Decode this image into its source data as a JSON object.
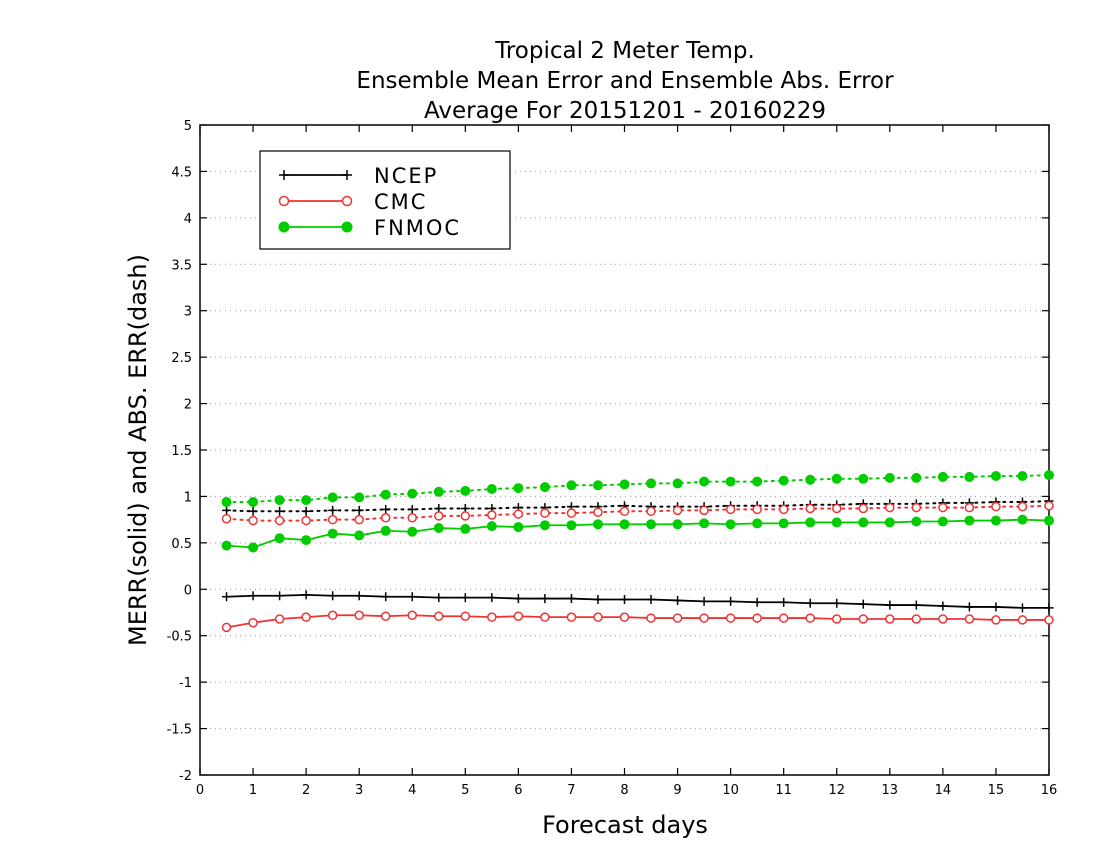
{
  "chart_data": {
    "type": "line",
    "title": [
      "Tropical 2 Meter Temp.",
      "Ensemble Mean Error and Ensemble Abs. Error",
      "Average For 20151201 - 20160229"
    ],
    "xlabel": "Forecast days",
    "ylabel": "MERR(solid) and ABS. ERR(dash)",
    "xlim": [
      0,
      16
    ],
    "ylim": [
      -2,
      5
    ],
    "xticks": [
      0,
      1,
      2,
      3,
      4,
      5,
      6,
      7,
      8,
      9,
      10,
      11,
      12,
      13,
      14,
      15,
      16
    ],
    "xtick_labels": [
      "0",
      "1",
      "2",
      "3",
      "4",
      "5",
      "6",
      "7",
      "8",
      "9",
      "10",
      "11",
      "12",
      "13",
      "14",
      "15",
      "16"
    ],
    "yticks": [
      -2,
      -1.5,
      -1,
      -0.5,
      0,
      0.5,
      1,
      1.5,
      2,
      2.5,
      3,
      3.5,
      4,
      4.5,
      5
    ],
    "ytick_labels": [
      "-2",
      "-1.5",
      "-1",
      "-0.5",
      "0",
      "0.5",
      "1",
      "1.5",
      "2",
      "2.5",
      "3",
      "3.5",
      "4",
      "4.5",
      "5"
    ],
    "grid": "horizontal dotted",
    "legend_position": "top-left",
    "x": [
      0.5,
      1,
      1.5,
      2,
      2.5,
      3,
      3.5,
      4,
      4.5,
      5,
      5.5,
      6,
      6.5,
      7,
      7.5,
      8,
      8.5,
      9,
      9.5,
      10,
      10.5,
      11,
      11.5,
      12,
      12.5,
      13,
      13.5,
      14,
      14.5,
      15,
      15.5,
      16
    ],
    "series": [
      {
        "name": "NCEP",
        "color": "#000000",
        "marker": "plus",
        "mean_error": [
          -0.08,
          -0.07,
          -0.07,
          -0.06,
          -0.07,
          -0.07,
          -0.08,
          -0.08,
          -0.09,
          -0.09,
          -0.09,
          -0.1,
          -0.1,
          -0.1,
          -0.11,
          -0.11,
          -0.11,
          -0.12,
          -0.13,
          -0.13,
          -0.14,
          -0.14,
          -0.15,
          -0.15,
          -0.16,
          -0.17,
          -0.17,
          -0.18,
          -0.19,
          -0.19,
          -0.2,
          -0.2
        ],
        "abs_error": [
          0.85,
          0.84,
          0.84,
          0.84,
          0.85,
          0.85,
          0.86,
          0.86,
          0.87,
          0.87,
          0.87,
          0.88,
          0.88,
          0.89,
          0.89,
          0.9,
          0.89,
          0.89,
          0.89,
          0.9,
          0.9,
          0.9,
          0.91,
          0.91,
          0.92,
          0.92,
          0.92,
          0.93,
          0.93,
          0.94,
          0.94,
          0.95
        ]
      },
      {
        "name": "CMC",
        "color": "#ee3333",
        "marker": "open-circle",
        "mean_error": [
          -0.41,
          -0.36,
          -0.32,
          -0.3,
          -0.28,
          -0.28,
          -0.29,
          -0.28,
          -0.29,
          -0.29,
          -0.3,
          -0.29,
          -0.3,
          -0.3,
          -0.3,
          -0.3,
          -0.31,
          -0.31,
          -0.31,
          -0.31,
          -0.31,
          -0.31,
          -0.31,
          -0.32,
          -0.32,
          -0.32,
          -0.32,
          -0.32,
          -0.32,
          -0.33,
          -0.33,
          -0.33
        ],
        "abs_error": [
          0.76,
          0.74,
          0.74,
          0.74,
          0.75,
          0.75,
          0.77,
          0.77,
          0.79,
          0.79,
          0.8,
          0.81,
          0.82,
          0.82,
          0.83,
          0.84,
          0.84,
          0.85,
          0.85,
          0.86,
          0.86,
          0.86,
          0.87,
          0.87,
          0.87,
          0.88,
          0.88,
          0.88,
          0.88,
          0.89,
          0.89,
          0.9
        ]
      },
      {
        "name": "FNMOC",
        "color": "#00cc00",
        "marker": "filled-circle",
        "mean_error": [
          0.47,
          0.45,
          0.55,
          0.53,
          0.6,
          0.58,
          0.63,
          0.62,
          0.66,
          0.65,
          0.68,
          0.67,
          0.69,
          0.69,
          0.7,
          0.7,
          0.7,
          0.7,
          0.71,
          0.7,
          0.71,
          0.71,
          0.72,
          0.72,
          0.72,
          0.72,
          0.73,
          0.73,
          0.74,
          0.74,
          0.75,
          0.74
        ],
        "abs_error": [
          0.94,
          0.94,
          0.96,
          0.96,
          0.99,
          0.99,
          1.02,
          1.03,
          1.05,
          1.06,
          1.08,
          1.09,
          1.1,
          1.12,
          1.12,
          1.13,
          1.14,
          1.14,
          1.16,
          1.16,
          1.16,
          1.17,
          1.18,
          1.19,
          1.19,
          1.2,
          1.2,
          1.21,
          1.21,
          1.22,
          1.22,
          1.23
        ]
      }
    ]
  }
}
